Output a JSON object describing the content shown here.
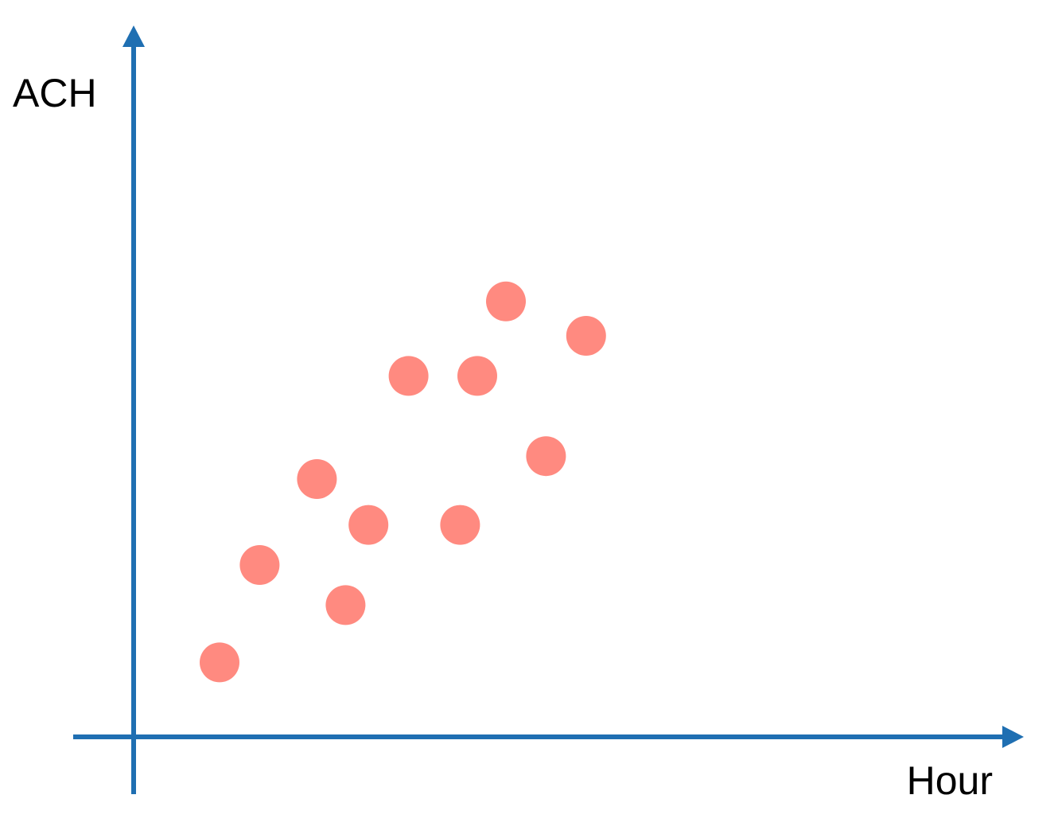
{
  "colors": {
    "axis": "#1f6fb2",
    "point": "#ff8a80",
    "background": "#ffffff",
    "text": "#000000"
  },
  "chart_data": {
    "type": "scatter",
    "title": "",
    "xlabel": "Hour",
    "ylabel": "ACH",
    "xlim": [
      0,
      11
    ],
    "ylim": [
      0,
      11
    ],
    "grid": false,
    "ticks": false,
    "legend": "none",
    "series": [
      {
        "x": [
          1.5,
          2.2,
          3.2,
          3.7,
          4.1,
          4.8,
          5.7,
          6.0,
          6.5,
          7.2,
          7.9
        ],
        "y": [
          1.3,
          3.0,
          4.5,
          2.3,
          3.7,
          6.3,
          3.7,
          6.3,
          7.6,
          4.9,
          7.0
        ]
      }
    ]
  }
}
